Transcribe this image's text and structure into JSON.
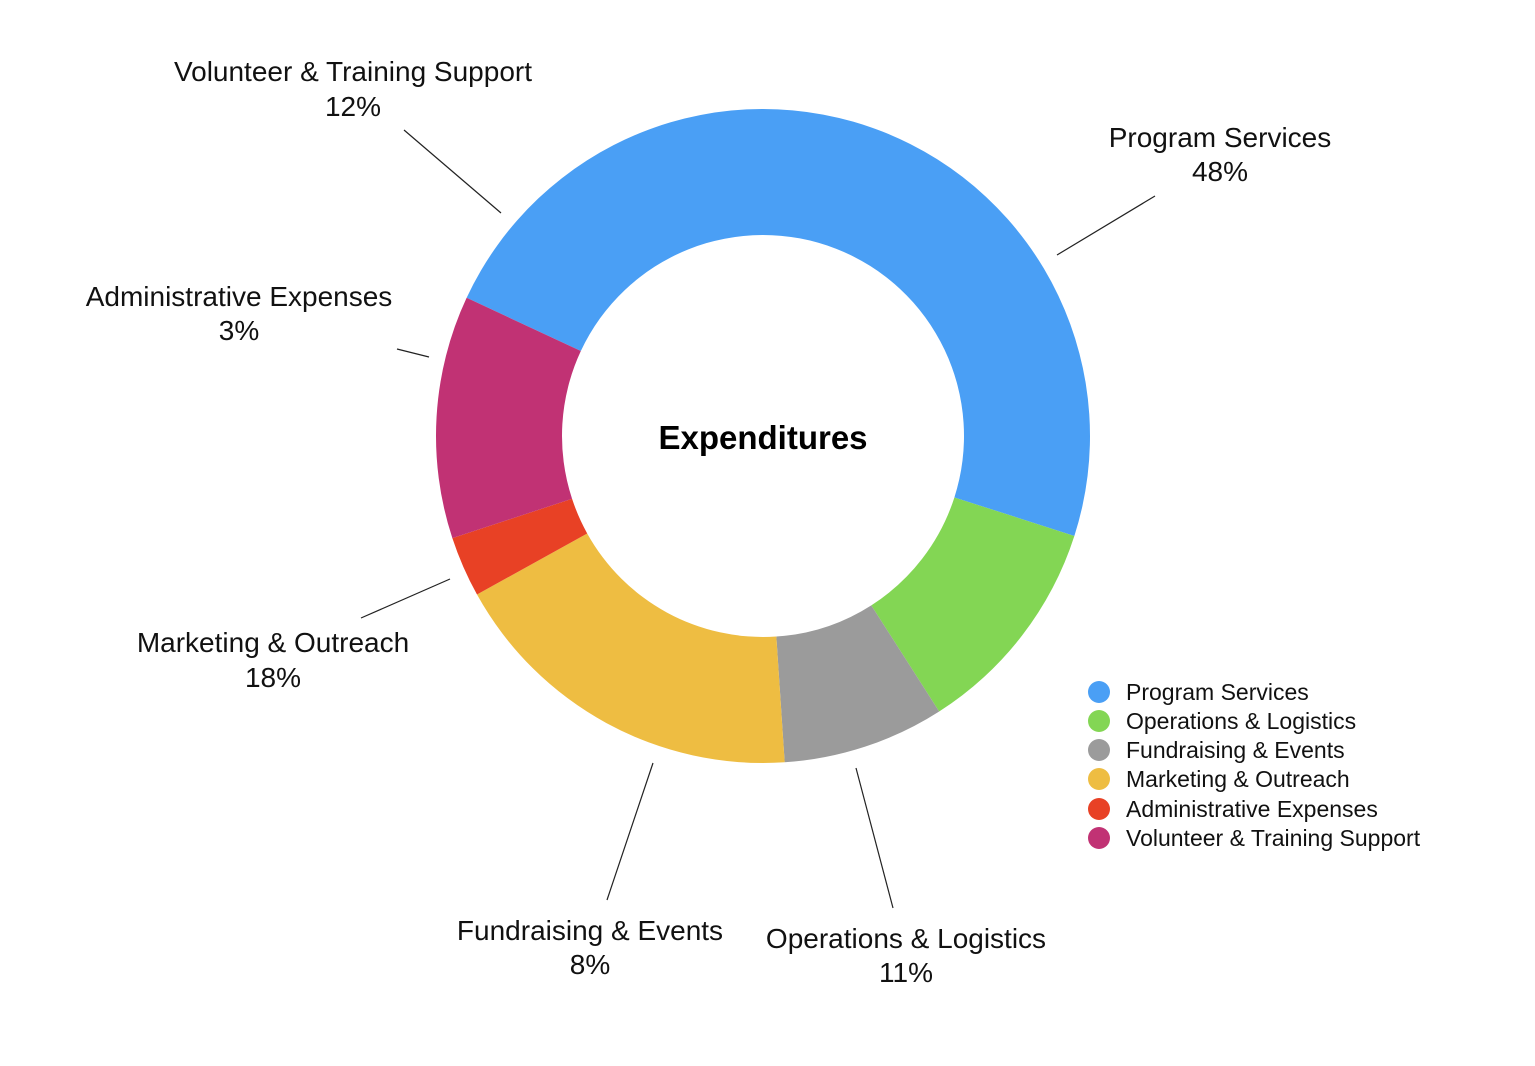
{
  "chart_data": {
    "type": "pie",
    "variant": "donut",
    "center_label": "Expenditures",
    "legend_position": "right",
    "slices": [
      {
        "label": "Program Services",
        "value": 48,
        "value_label": "48%",
        "color": "#4a9ff5"
      },
      {
        "label": "Operations & Logistics",
        "value": 11,
        "value_label": "11%",
        "color": "#83d654"
      },
      {
        "label": "Fundraising & Events",
        "value": 8,
        "value_label": "8%",
        "color": "#9b9b9b"
      },
      {
        "label": "Marketing & Outreach",
        "value": 18,
        "value_label": "18%",
        "color": "#eebd42"
      },
      {
        "label": "Administrative Expenses",
        "value": 3,
        "value_label": "3%",
        "color": "#e84125"
      },
      {
        "label": "Volunteer & Training Support",
        "value": 12,
        "value_label": "12%",
        "color": "#c13274"
      }
    ]
  }
}
